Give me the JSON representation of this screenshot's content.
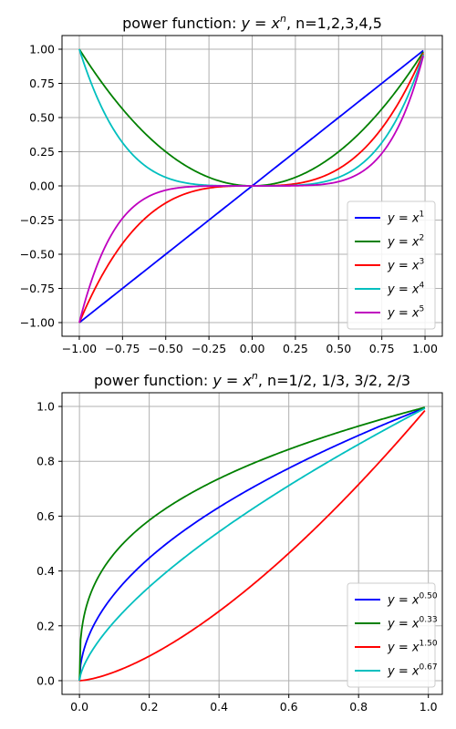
{
  "chart_data": [
    {
      "type": "line",
      "title_prefix": "power function: ",
      "title_math_base": "y = x",
      "title_math_exp": "n",
      "title_suffix": ", n=1,2,3,4,5",
      "xlim": [
        -1.1,
        1.1
      ],
      "ylim": [
        -1.1,
        1.1
      ],
      "xticks": [
        -1.0,
        -0.75,
        -0.5,
        -0.25,
        0.0,
        0.25,
        0.5,
        0.75,
        1.0
      ],
      "xtick_labels": [
        "−1.00",
        "−0.75",
        "−0.50",
        "−0.25",
        "0.00",
        "0.25",
        "0.50",
        "0.75",
        "1.00"
      ],
      "yticks": [
        -1.0,
        -0.75,
        -0.5,
        -0.25,
        0.0,
        0.25,
        0.5,
        0.75,
        1.0
      ],
      "ytick_labels": [
        "−1.00",
        "−0.75",
        "−0.50",
        "−0.25",
        "0.00",
        "0.25",
        "0.50",
        "0.75",
        "1.00"
      ],
      "x_domain": [
        -1.0,
        0.99
      ],
      "grid": true,
      "legend_position": "lower-right",
      "series": [
        {
          "name": "y = x^1",
          "legend_base": "y = x",
          "legend_exp": "1",
          "exponent": 1,
          "color": "#0000ff"
        },
        {
          "name": "y = x^2",
          "legend_base": "y = x",
          "legend_exp": "2",
          "exponent": 2,
          "color": "#008000"
        },
        {
          "name": "y = x^3",
          "legend_base": "y = x",
          "legend_exp": "3",
          "exponent": 3,
          "color": "#ff0000"
        },
        {
          "name": "y = x^4",
          "legend_base": "y = x",
          "legend_exp": "4",
          "exponent": 4,
          "color": "#00bfbf"
        },
        {
          "name": "y = x^5",
          "legend_base": "y = x",
          "legend_exp": "5",
          "exponent": 5,
          "color": "#bf00bf"
        }
      ]
    },
    {
      "type": "line",
      "title_prefix": "power function: ",
      "title_math_base": "y = x",
      "title_math_exp": "n",
      "title_suffix": ", n=1/2, 1/3, 3/2, 2/3",
      "xlim": [
        -0.05,
        1.04
      ],
      "ylim": [
        -0.05,
        1.05
      ],
      "xticks": [
        0.0,
        0.2,
        0.4,
        0.6,
        0.8,
        1.0
      ],
      "xtick_labels": [
        "0.0",
        "0.2",
        "0.4",
        "0.6",
        "0.8",
        "1.0"
      ],
      "yticks": [
        0.0,
        0.2,
        0.4,
        0.6,
        0.8,
        1.0
      ],
      "ytick_labels": [
        "0.0",
        "0.2",
        "0.4",
        "0.6",
        "0.8",
        "1.0"
      ],
      "x_domain": [
        0.0,
        0.99
      ],
      "grid": true,
      "legend_position": "lower-right",
      "series": [
        {
          "name": "y = x^0.50",
          "legend_base": "y = x",
          "legend_exp": "0.50",
          "exponent": 0.5,
          "color": "#0000ff"
        },
        {
          "name": "y = x^0.33",
          "legend_base": "y = x",
          "legend_exp": "0.33",
          "exponent": 0.3333,
          "color": "#008000"
        },
        {
          "name": "y = x^1.50",
          "legend_base": "y = x",
          "legend_exp": "1.50",
          "exponent": 1.5,
          "color": "#ff0000"
        },
        {
          "name": "y = x^0.67",
          "legend_base": "y = x",
          "legend_exp": "0.67",
          "exponent": 0.6667,
          "color": "#00bfbf"
        }
      ]
    }
  ]
}
